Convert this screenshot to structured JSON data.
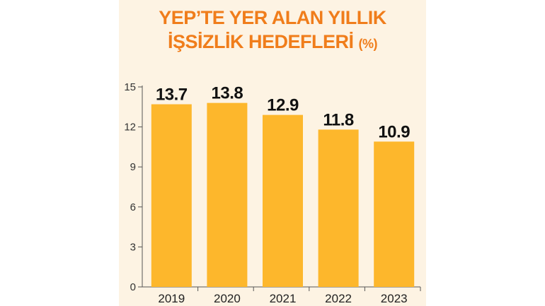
{
  "chart_data": {
    "type": "bar",
    "title_line1": "YEP’TE YER ALAN YILLIK",
    "title_line2": "İŞSİZLİK HEDEFLERİ",
    "title_unit": "(%)",
    "categories": [
      "2019",
      "2020",
      "2021",
      "2022",
      "2023"
    ],
    "values": [
      13.7,
      13.8,
      12.9,
      11.8,
      10.9
    ],
    "data_labels": [
      "13.7",
      "13.8",
      "12.9",
      "11.8",
      "10.9"
    ],
    "yticks": [
      0,
      3,
      6,
      9,
      12,
      15
    ],
    "ylim": [
      0,
      15
    ],
    "grid": false,
    "bar_color": "#fdb72c",
    "title_color": "#f07d1b",
    "background_color": "#fdf3e3"
  }
}
